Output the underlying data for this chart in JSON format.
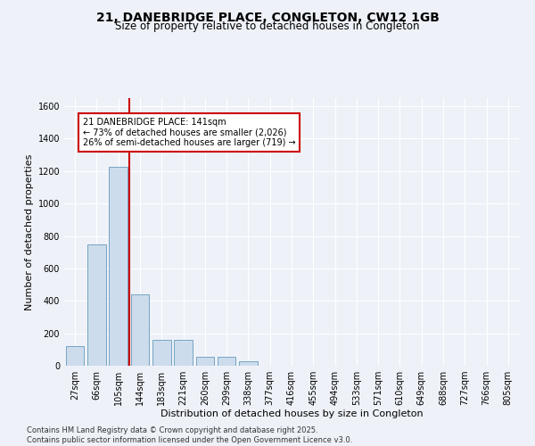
{
  "title": "21, DANEBRIDGE PLACE, CONGLETON, CW12 1GB",
  "subtitle": "Size of property relative to detached houses in Congleton",
  "xlabel": "Distribution of detached houses by size in Congleton",
  "ylabel": "Number of detached properties",
  "categories": [
    "27sqm",
    "66sqm",
    "105sqm",
    "144sqm",
    "183sqm",
    "221sqm",
    "260sqm",
    "299sqm",
    "338sqm",
    "377sqm",
    "416sqm",
    "455sqm",
    "494sqm",
    "533sqm",
    "571sqm",
    "610sqm",
    "649sqm",
    "688sqm",
    "727sqm",
    "766sqm",
    "805sqm"
  ],
  "values": [
    120,
    750,
    1225,
    440,
    160,
    160,
    55,
    55,
    25,
    0,
    0,
    0,
    0,
    0,
    0,
    0,
    0,
    0,
    0,
    0,
    0
  ],
  "bar_color": "#ccdcec",
  "bar_edge_color": "#6699bb",
  "property_line_index": 2.5,
  "property_line_color": "#cc0000",
  "annotation_text": "21 DANEBRIDGE PLACE: 141sqm\n← 73% of detached houses are smaller (2,026)\n26% of semi-detached houses are larger (719) →",
  "annotation_box_edgecolor": "#cc0000",
  "annotation_box_facecolor": "#ffffff",
  "ylim": [
    0,
    1650
  ],
  "yticks": [
    0,
    200,
    400,
    600,
    800,
    1000,
    1200,
    1400,
    1600
  ],
  "footer_line1": "Contains HM Land Registry data © Crown copyright and database right 2025.",
  "footer_line2": "Contains public sector information licensed under the Open Government Licence v3.0.",
  "bg_color": "#eef2f8",
  "plot_bg_color": "#eef2f8",
  "grid_color": "#ffffff",
  "title_fontsize": 10,
  "subtitle_fontsize": 8.5,
  "axis_label_fontsize": 8,
  "tick_fontsize": 7,
  "annotation_fontsize": 7,
  "footer_fontsize": 6
}
